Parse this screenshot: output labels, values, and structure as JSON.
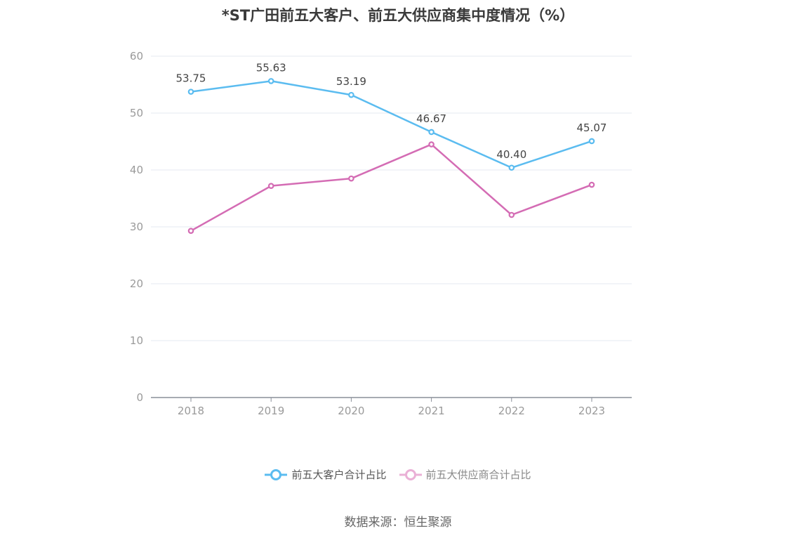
{
  "chart_data": {
    "type": "line",
    "title": "*ST广田前五大客户、前五大供应商集中度情况（%）",
    "categories": [
      "2018",
      "2019",
      "2020",
      "2021",
      "2022",
      "2023"
    ],
    "ylim": [
      0,
      60
    ],
    "yticks": [
      0,
      10,
      20,
      30,
      40,
      50,
      60
    ],
    "grid": true,
    "legend_position": "bottom-center",
    "series": [
      {
        "name": "前五大客户合计占比",
        "color": "#5bbcf0",
        "values": [
          53.75,
          55.63,
          53.19,
          46.67,
          40.4,
          45.07
        ],
        "labels": [
          "53.75",
          "55.63",
          "53.19",
          "46.67",
          "40.40",
          "45.07"
        ],
        "show_labels": true
      },
      {
        "name": "前五大供应商合计占比",
        "color": "#d46cb4",
        "legend_color": "#eab0d6",
        "values": [
          29.3,
          37.2,
          38.5,
          44.5,
          32.1,
          37.4
        ],
        "show_labels": false
      }
    ]
  },
  "source": "数据来源：恒生聚源"
}
